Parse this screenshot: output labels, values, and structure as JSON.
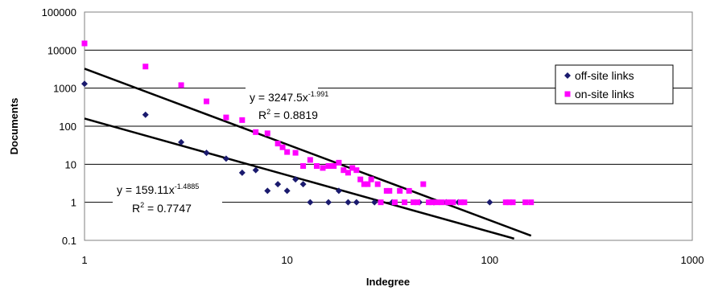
{
  "chart_data": {
    "type": "scatter",
    "xlabel": "Indegree",
    "ylabel": "Documents",
    "xscale": "log",
    "yscale": "log",
    "xlim": [
      1,
      1000
    ],
    "ylim": [
      0.1,
      100000
    ],
    "grid": "horizontal",
    "legend_position": "right",
    "x_ticks": [
      "1",
      "10",
      "100",
      "1000"
    ],
    "y_ticks": [
      "0.1",
      "1",
      "10",
      "100",
      "1000",
      "10000",
      "100000"
    ],
    "series": [
      {
        "name": "off-site links",
        "marker": "diamond",
        "color": "#1a1a6e",
        "points": [
          [
            1,
            1300
          ],
          [
            2,
            200
          ],
          [
            3,
            38
          ],
          [
            4,
            20
          ],
          [
            5,
            14
          ],
          [
            6,
            6
          ],
          [
            7,
            7
          ],
          [
            8,
            2
          ],
          [
            9,
            3
          ],
          [
            10,
            2
          ],
          [
            11,
            4
          ],
          [
            12,
            3
          ],
          [
            13,
            1
          ],
          [
            16,
            1
          ],
          [
            18,
            2
          ],
          [
            20,
            1
          ],
          [
            22,
            1
          ],
          [
            27,
            1
          ],
          [
            33,
            1
          ],
          [
            45,
            1
          ],
          [
            53,
            1
          ],
          [
            61,
            1
          ],
          [
            70,
            1
          ],
          [
            100,
            1
          ]
        ]
      },
      {
        "name": "on-site links",
        "marker": "square",
        "color": "#ff00ff",
        "points": [
          [
            1,
            15000
          ],
          [
            2,
            3700
          ],
          [
            3,
            1200
          ],
          [
            4,
            450
          ],
          [
            5,
            170
          ],
          [
            6,
            145
          ],
          [
            7,
            70
          ],
          [
            8,
            65
          ],
          [
            9,
            35
          ],
          [
            9.5,
            28
          ],
          [
            10,
            21
          ],
          [
            11,
            20
          ],
          [
            12,
            9
          ],
          [
            13,
            13
          ],
          [
            14,
            9
          ],
          [
            15,
            8
          ],
          [
            16,
            9
          ],
          [
            17,
            9
          ],
          [
            18,
            11
          ],
          [
            19,
            7
          ],
          [
            20,
            6
          ],
          [
            21,
            8
          ],
          [
            22,
            7
          ],
          [
            23,
            4
          ],
          [
            24,
            3
          ],
          [
            25,
            3
          ],
          [
            26,
            4
          ],
          [
            28,
            3
          ],
          [
            29,
            1
          ],
          [
            31,
            2
          ],
          [
            32,
            2
          ],
          [
            34,
            1
          ],
          [
            36,
            2
          ],
          [
            38,
            1
          ],
          [
            40,
            2
          ],
          [
            42,
            1
          ],
          [
            44,
            1
          ],
          [
            47,
            3
          ],
          [
            50,
            1
          ],
          [
            52,
            1
          ],
          [
            55,
            1
          ],
          [
            58,
            1
          ],
          [
            62,
            1
          ],
          [
            66,
            1
          ],
          [
            72,
            1
          ],
          [
            75,
            1
          ],
          [
            120,
            1
          ],
          [
            125,
            1
          ],
          [
            130,
            1
          ],
          [
            150,
            1
          ],
          [
            160,
            1
          ]
        ]
      }
    ],
    "trendlines": [
      {
        "series": "on-site links",
        "coef": 3247.5,
        "exponent": -1.991,
        "x_range": [
          1,
          160
        ]
      },
      {
        "series": "off-site links",
        "coef": 159.11,
        "exponent": -1.4885,
        "x_range": [
          1,
          132
        ]
      }
    ],
    "annotations": {
      "onsite_eq_prefix": "y = 3247.5x",
      "onsite_eq_exp": "-1.991",
      "onsite_r2_prefix": "R",
      "onsite_r2_sup": "2",
      "onsite_r2_value": " = 0.8819",
      "offsite_eq_prefix": "y = 159.11x",
      "offsite_eq_exp": "-1.4885",
      "offsite_r2_prefix": "R",
      "offsite_r2_sup": "2",
      "offsite_r2_value": " = 0.7747"
    }
  }
}
